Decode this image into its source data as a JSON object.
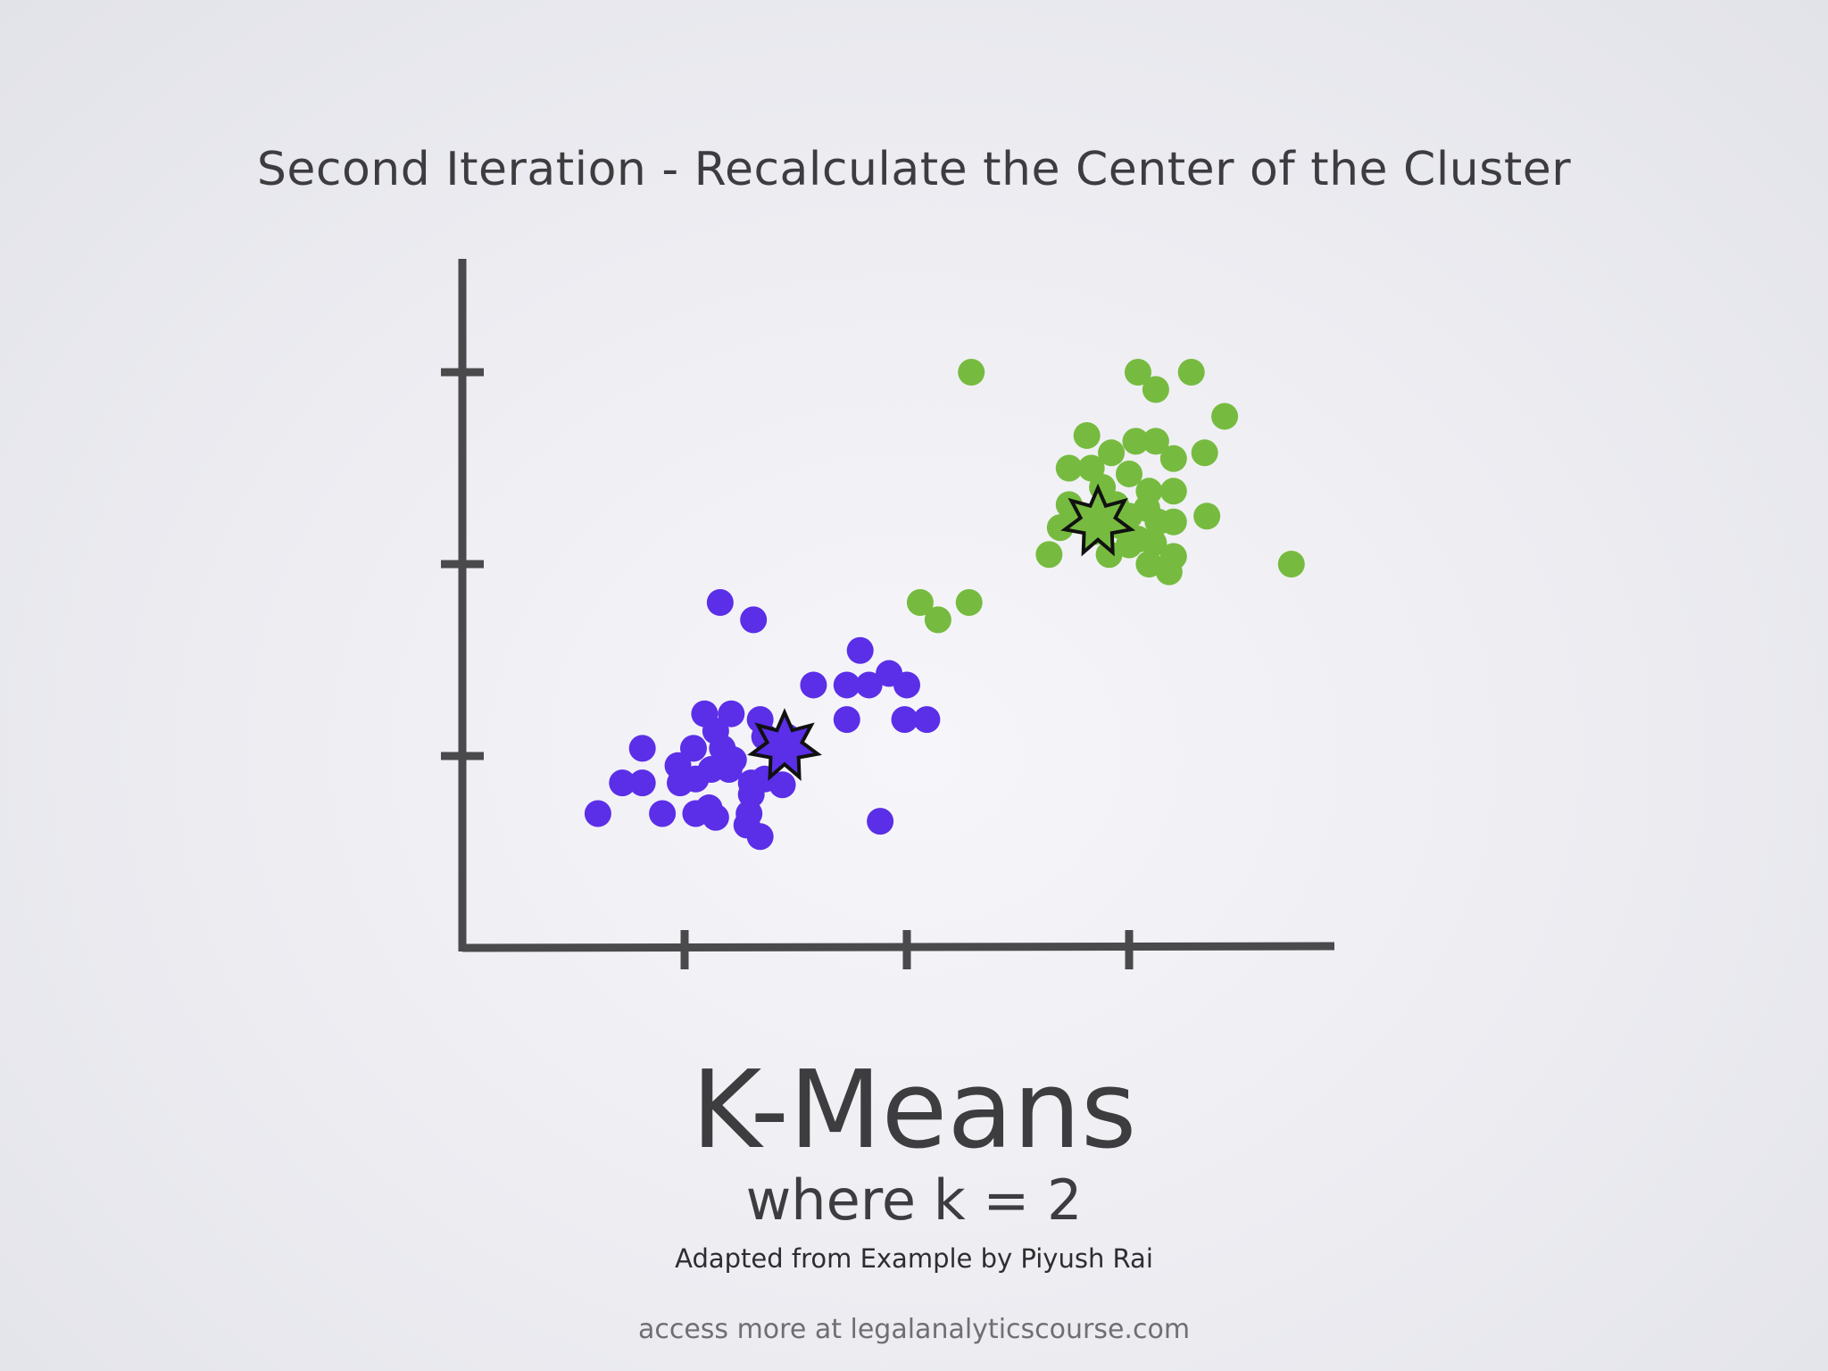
{
  "slide": {
    "heading": "Second Iteration - Recalculate the Center of the Cluster",
    "title": "K-Means",
    "subtitle": "where k = 2",
    "credit": "Adapted from Example by Piyush Rai",
    "footer": "access more at legalanalyticscourse.com"
  },
  "colors": {
    "cluster_purple": "#5b2ee8",
    "cluster_green": "#76bb3f",
    "axis": "#4a4a4d",
    "centroid_outline": "#111111"
  },
  "chart_data": {
    "type": "scatter",
    "title": "Second Iteration - Recalculate the Center of the Cluster",
    "xlabel": "",
    "ylabel": "",
    "xlim": [
      0,
      3.9
    ],
    "ylim": [
      0,
      3.6
    ],
    "x_ticks": [
      1,
      2,
      3
    ],
    "y_ticks": [
      1,
      2,
      3
    ],
    "tick_labels_shown": false,
    "grid": false,
    "legend": "none",
    "series": [
      {
        "color": "#5b2ee8",
        "marker": "circle",
        "points": [
          [
            1.16,
            1.8
          ],
          [
            1.31,
            1.71
          ],
          [
            0.81,
            1.04
          ],
          [
            0.9,
            0.7
          ],
          [
            0.98,
            0.86
          ],
          [
            1.05,
            0.88
          ],
          [
            1.05,
            0.7
          ],
          [
            1.11,
            0.73
          ],
          [
            1.17,
            1.04
          ],
          [
            1.22,
            0.98
          ],
          [
            1.12,
            0.93
          ],
          [
            1.2,
            0.93
          ],
          [
            0.61,
            0.7
          ],
          [
            0.72,
            0.86
          ],
          [
            0.81,
            0.86
          ],
          [
            0.97,
            0.95
          ],
          [
            1.09,
            1.22
          ],
          [
            1.21,
            1.22
          ],
          [
            1.36,
            0.88
          ],
          [
            1.36,
            1.1
          ],
          [
            1.29,
            0.7
          ],
          [
            1.3,
            0.86
          ],
          [
            1.3,
            0.8
          ],
          [
            1.44,
            0.85
          ],
          [
            1.34,
            0.58
          ],
          [
            1.14,
            0.68
          ],
          [
            1.28,
            0.64
          ],
          [
            1.04,
            1.04
          ],
          [
            1.14,
            1.13
          ],
          [
            1.58,
            1.37
          ],
          [
            1.79,
            1.55
          ],
          [
            1.73,
            1.37
          ],
          [
            1.83,
            1.37
          ],
          [
            1.92,
            1.43
          ],
          [
            2.0,
            1.37
          ],
          [
            1.73,
            1.19
          ],
          [
            1.99,
            1.19
          ],
          [
            2.09,
            1.19
          ],
          [
            1.88,
            0.66
          ],
          [
            1.34,
            1.19
          ],
          [
            1.46,
            1.1
          ]
        ]
      },
      {
        "color": "#76bb3f",
        "marker": "circle",
        "points": [
          [
            2.29,
            3.0
          ],
          [
            3.04,
            3.0
          ],
          [
            3.12,
            2.91
          ],
          [
            3.28,
            3.0
          ],
          [
            3.43,
            2.77
          ],
          [
            2.81,
            2.67
          ],
          [
            3.03,
            2.64
          ],
          [
            3.12,
            2.64
          ],
          [
            3.2,
            2.55
          ],
          [
            3.34,
            2.58
          ],
          [
            2.73,
            2.5
          ],
          [
            2.83,
            2.5
          ],
          [
            2.92,
            2.58
          ],
          [
            3.0,
            2.47
          ],
          [
            3.09,
            2.38
          ],
          [
            2.88,
            2.4
          ],
          [
            3.08,
            2.29
          ],
          [
            3.2,
            2.38
          ],
          [
            2.73,
            2.31
          ],
          [
            2.94,
            2.31
          ],
          [
            2.96,
            2.2
          ],
          [
            3.0,
            2.25
          ],
          [
            3.13,
            2.22
          ],
          [
            3.2,
            2.22
          ],
          [
            3.35,
            2.25
          ],
          [
            2.69,
            2.19
          ],
          [
            2.85,
            2.17
          ],
          [
            2.77,
            2.25
          ],
          [
            3.04,
            2.13
          ],
          [
            3.11,
            2.11
          ],
          [
            3.2,
            2.04
          ],
          [
            2.64,
            2.05
          ],
          [
            2.91,
            2.05
          ],
          [
            3.0,
            2.1
          ],
          [
            3.09,
            2.0
          ],
          [
            3.18,
            1.96
          ],
          [
            3.73,
            2.0
          ],
          [
            2.06,
            1.8
          ],
          [
            2.28,
            1.8
          ],
          [
            2.14,
            1.71
          ]
        ]
      }
    ],
    "centroids": [
      {
        "color": "#5b2ee8",
        "x": 1.45,
        "y": 1.05
      },
      {
        "color": "#76bb3f",
        "x": 2.86,
        "y": 2.22
      }
    ]
  }
}
